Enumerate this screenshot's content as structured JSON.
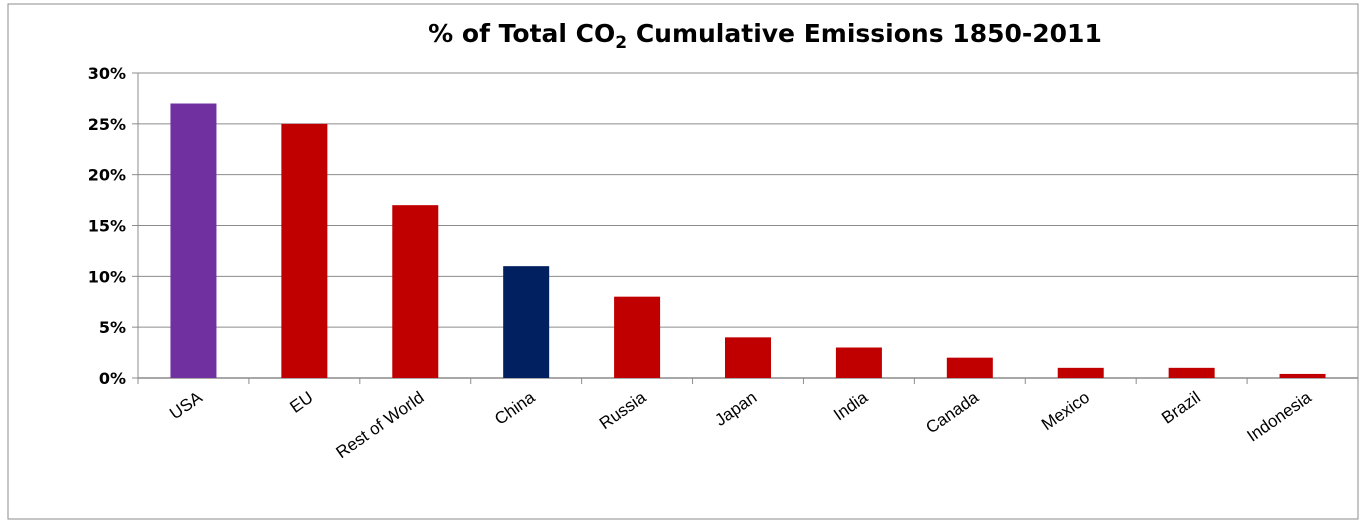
{
  "chart_data": {
    "type": "bar",
    "title": {
      "prefix": "% of Total CO",
      "subscript": "2",
      "suffix": " Cumulative  Emissions  1850-2011"
    },
    "xlabel": "",
    "ylabel": "",
    "ylim": [
      0,
      30
    ],
    "y_ticks": [
      0,
      5,
      10,
      15,
      20,
      25,
      30
    ],
    "y_tick_labels": [
      "0%",
      "5%",
      "10%",
      "15%",
      "20%",
      "25%",
      "30%"
    ],
    "grid": "horizontal",
    "legend": "none",
    "categories": [
      "USA",
      "EU",
      "Rest of World",
      "China",
      "Russia",
      "Japan",
      "India",
      "Canada",
      "Mexico",
      "Brazil",
      "Indonesia"
    ],
    "values": [
      27,
      25,
      17,
      11,
      8,
      4,
      3,
      2,
      1,
      1,
      0.4
    ],
    "colors": [
      "#7030a0",
      "#c00000",
      "#c00000",
      "#002060",
      "#c00000",
      "#c00000",
      "#c00000",
      "#c00000",
      "#c00000",
      "#c00000",
      "#c00000"
    ]
  }
}
